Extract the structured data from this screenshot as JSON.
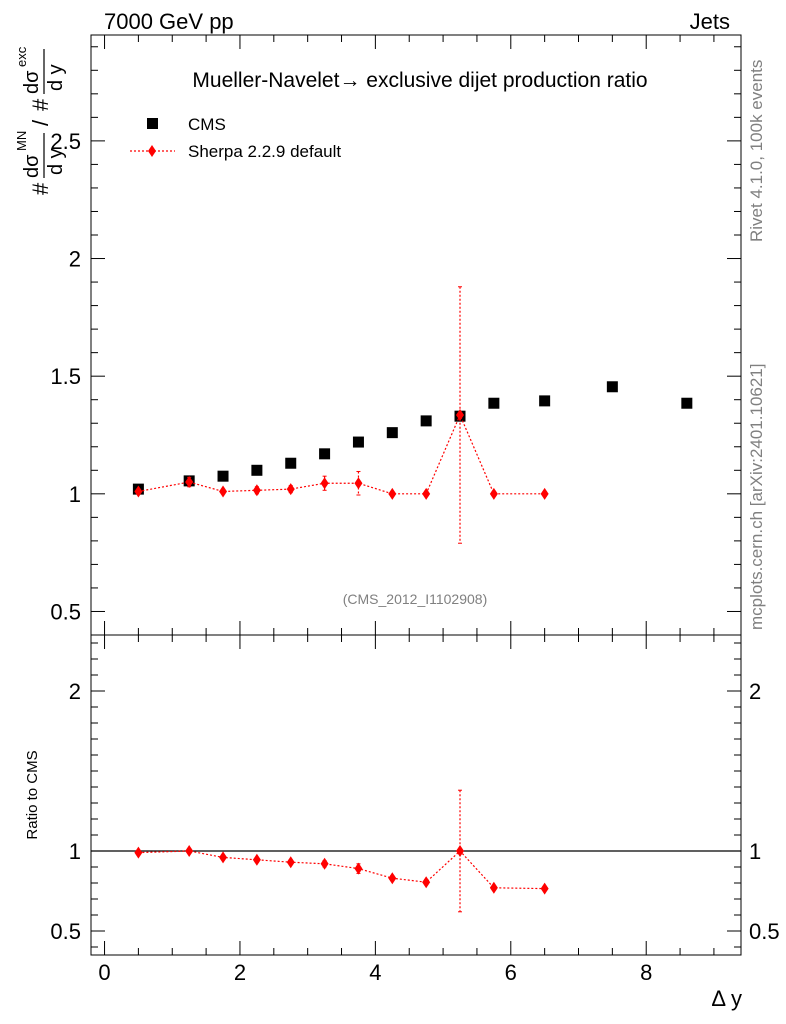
{
  "header": {
    "energy": "7000 GeV pp",
    "category": "Jets",
    "side_rivet": "Rivet 4.1.0,  100k events",
    "side_mcplots": "mcplots.cern.ch [arXiv:2401.10621]"
  },
  "chart_data": [
    {
      "type": "scatter",
      "title": "Mueller-Navelet→ exclusive dijet production ratio",
      "watermark": "(CMS_2012_I1102908)",
      "ylabel": {
        "num_hash": "#",
        "d_sigma": "dσ",
        "num_sup": "MN",
        "dy": "d y",
        "slash": "/",
        "den_hash": "#",
        "den_sup": "exc"
      },
      "xlim": [
        -0.2,
        9.4
      ],
      "ylim": [
        0.4,
        2.95
      ],
      "y_ticks": [
        0.5,
        1,
        1.5,
        2,
        2.5
      ],
      "y_tick_labels": [
        "0.5",
        "1",
        "1.5",
        "2",
        "2.5"
      ],
      "legend": [
        {
          "name": "CMS",
          "marker": "square",
          "color": "#000000"
        },
        {
          "name": "Sherpa 2.2.9 default",
          "marker": "diamond",
          "color": "#ff0000"
        }
      ],
      "series": [
        {
          "name": "CMS",
          "x": [
            0.5,
            1.25,
            1.75,
            2.25,
            2.75,
            3.25,
            3.75,
            4.25,
            4.75,
            5.25,
            5.75,
            6.5,
            7.5,
            8.6
          ],
          "y": [
            1.02,
            1.055,
            1.075,
            1.1,
            1.13,
            1.17,
            1.22,
            1.26,
            1.31,
            1.33,
            1.385,
            1.395,
            1.455,
            1.385
          ]
        },
        {
          "name": "Sherpa 2.2.9 default",
          "x": [
            0.5,
            1.25,
            1.75,
            2.25,
            2.75,
            3.25,
            3.75,
            4.25,
            4.75,
            5.25,
            5.75,
            6.5
          ],
          "y": [
            1.01,
            1.05,
            1.01,
            1.015,
            1.02,
            1.045,
            1.045,
            1.0,
            1.0,
            1.335,
            1.0,
            1.0
          ],
          "err": [
            0.01,
            0.02,
            0.01,
            0.015,
            0.015,
            0.03,
            0.05,
            0.01,
            0.01,
            0.545,
            0.01,
            0.01
          ]
        }
      ]
    },
    {
      "type": "scatter",
      "ylabel": "Ratio to CMS",
      "xlabel": "Δ y",
      "xlim": [
        -0.2,
        9.4
      ],
      "ylim": [
        0.35,
        2.35
      ],
      "x_ticks": [
        0,
        2,
        4,
        6,
        8
      ],
      "x_tick_labels": [
        "0",
        "2",
        "4",
        "6",
        "8"
      ],
      "y_ticks": [
        0.5,
        1,
        2
      ],
      "y_tick_labels": [
        "0.5",
        "1",
        "2"
      ],
      "reference_line": 1,
      "series": [
        {
          "name": "Sherpa / CMS",
          "x": [
            0.5,
            1.25,
            1.75,
            2.25,
            2.75,
            3.25,
            3.75,
            4.25,
            4.75,
            5.25,
            5.75,
            6.5
          ],
          "y": [
            0.99,
            1.0,
            0.96,
            0.945,
            0.93,
            0.92,
            0.89,
            0.83,
            0.805,
            1.0,
            0.77,
            0.765
          ],
          "err": [
            0.01,
            0.015,
            0.015,
            0.015,
            0.015,
            0.02,
            0.03,
            0.015,
            0.015,
            0.38,
            0.01,
            0.01
          ]
        }
      ]
    }
  ]
}
